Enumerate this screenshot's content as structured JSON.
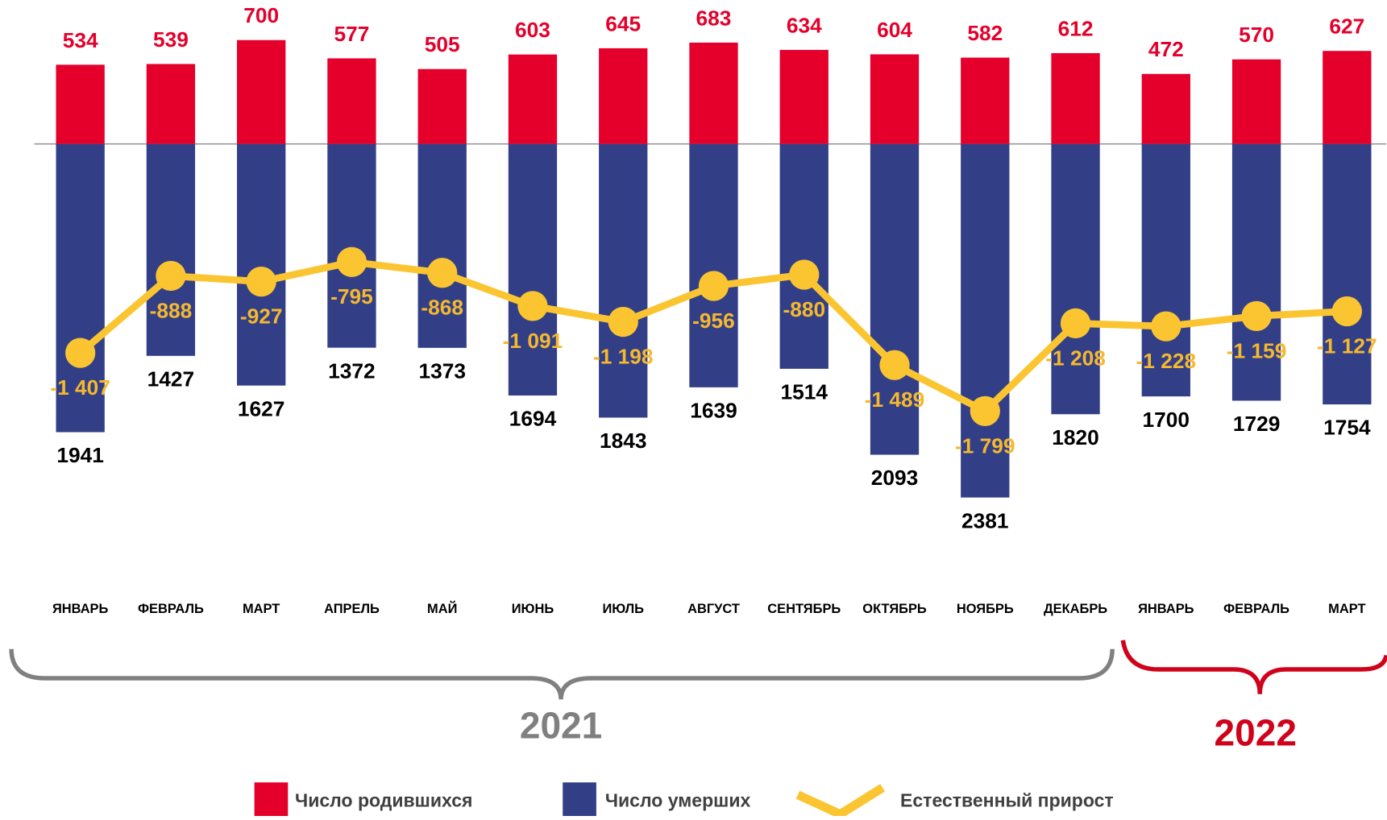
{
  "chart_data": {
    "type": "diverging_bar_line",
    "categories": [
      "ЯНВАРЬ",
      "ФЕВРАЛЬ",
      "МАРТ",
      "АПРЕЛЬ",
      "МАЙ",
      "ИЮНЬ",
      "ИЮЛЬ",
      "АВГУСТ",
      "СЕНТЯБРЬ",
      "ОКТЯБРЬ",
      "НОЯБРЬ",
      "ДЕКАБРЬ",
      "ЯНВАРЬ",
      "ФЕВРАЛЬ",
      "МАРТ"
    ],
    "series": [
      {
        "name": "Число родившихся",
        "color": "#e4002b",
        "values": [
          534,
          539,
          700,
          577,
          505,
          603,
          645,
          683,
          634,
          604,
          582,
          612,
          472,
          570,
          627
        ]
      },
      {
        "name": "Число умерших",
        "color": "#323f87",
        "values": [
          1941,
          1427,
          1627,
          1372,
          1373,
          1694,
          1843,
          1639,
          1514,
          2093,
          2381,
          1820,
          1700,
          1729,
          1754
        ]
      },
      {
        "name": "Естественный прирост",
        "color": "#fbc531",
        "values": [
          -1407,
          -888,
          -927,
          -795,
          -868,
          -1091,
          -1198,
          -956,
          -880,
          -1489,
          -1799,
          -1208,
          -1228,
          -1159,
          -1127
        ],
        "value_labels": [
          "-1 407",
          "-888",
          "-927",
          "-795",
          "-868",
          "-1 091",
          "-1 198",
          "-956",
          "-880",
          "-1 489",
          "-1 799",
          "-1 208",
          "-1 228",
          "-1 159",
          "-1 127"
        ]
      }
    ],
    "groups": [
      {
        "label": "2021",
        "color": "#808080"
      },
      {
        "label": "2022",
        "color": "#d0021b"
      }
    ],
    "ylim": [
      -2700,
      970
    ]
  }
}
